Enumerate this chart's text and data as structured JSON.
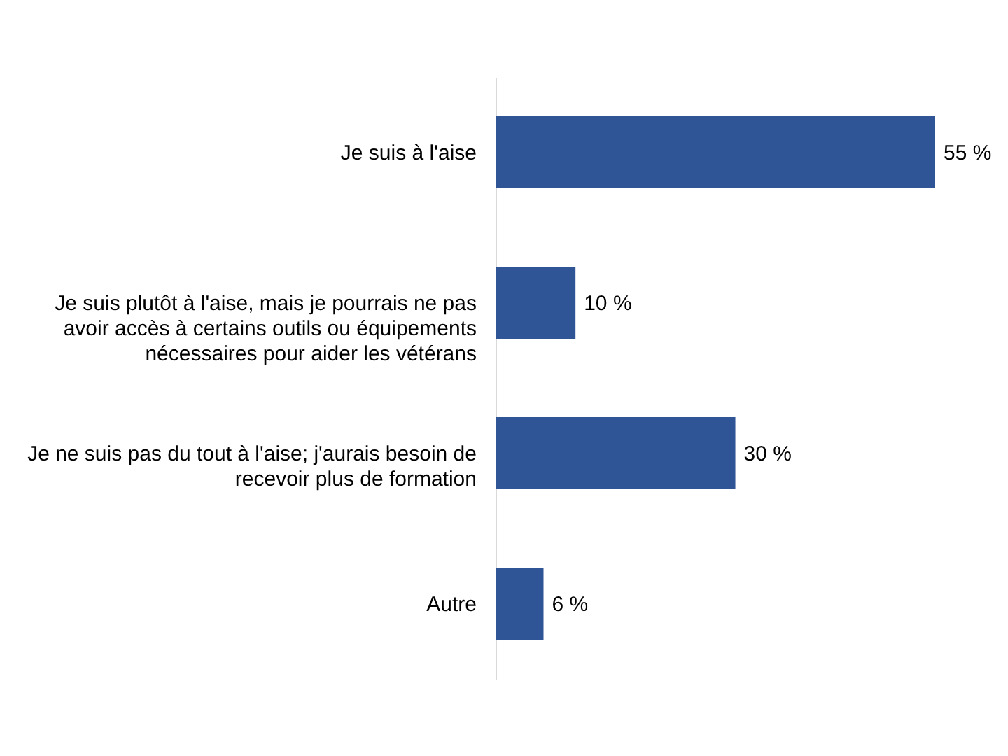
{
  "chart_data": {
    "type": "bar",
    "orientation": "horizontal",
    "categories": [
      "Je suis à l'aise",
      "Je suis plutôt à l'aise, mais je pourrais ne pas avoir accès à certains outils ou équipements nécessaires pour aider les vétérans",
      "Je ne suis pas du tout à l'aise; j'aurais besoin de recevoir plus de formation",
      "Autre"
    ],
    "values": [
      55,
      10,
      30,
      6
    ],
    "color": "#2f5597",
    "value_labels": [
      "55 %",
      "10 %",
      "30 %",
      "6 %"
    ]
  }
}
